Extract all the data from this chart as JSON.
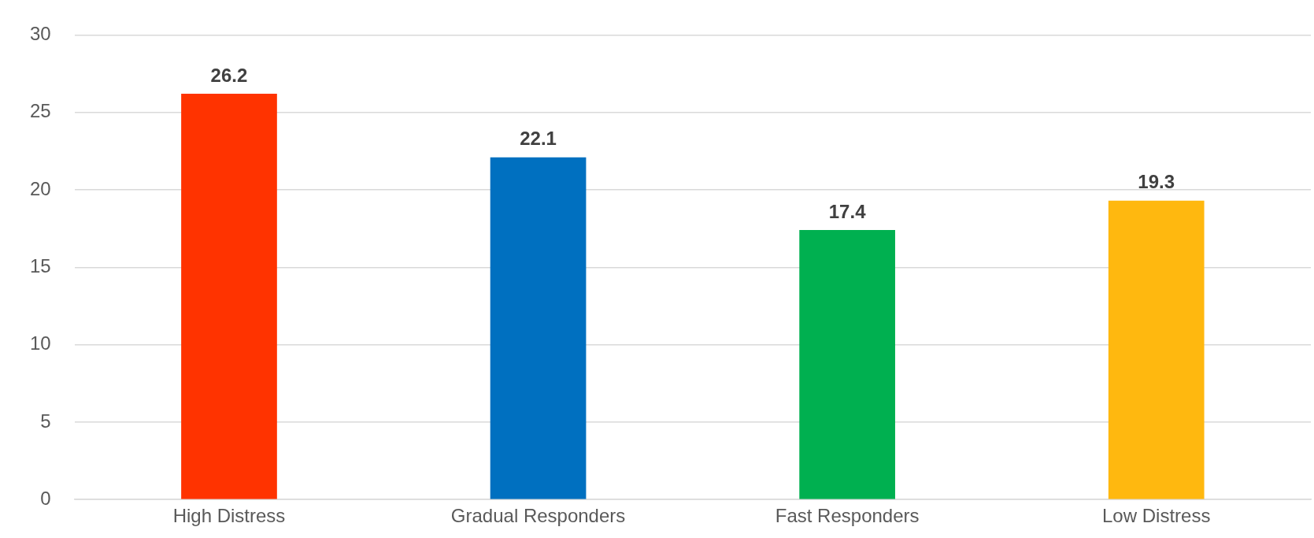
{
  "chart_data": {
    "type": "bar",
    "categories": [
      "High Distress",
      "Gradual Responders",
      "Fast Responders",
      "Low Distress"
    ],
    "values": [
      26.2,
      22.1,
      17.4,
      19.3
    ],
    "colors": [
      "#ff3300",
      "#0070c0",
      "#00b050",
      "#ffb80f"
    ],
    "ylim": [
      0,
      30
    ],
    "yticks": [
      0,
      5,
      10,
      15,
      20,
      25,
      30
    ],
    "grid": "y",
    "data_labels": true,
    "legend": false
  }
}
